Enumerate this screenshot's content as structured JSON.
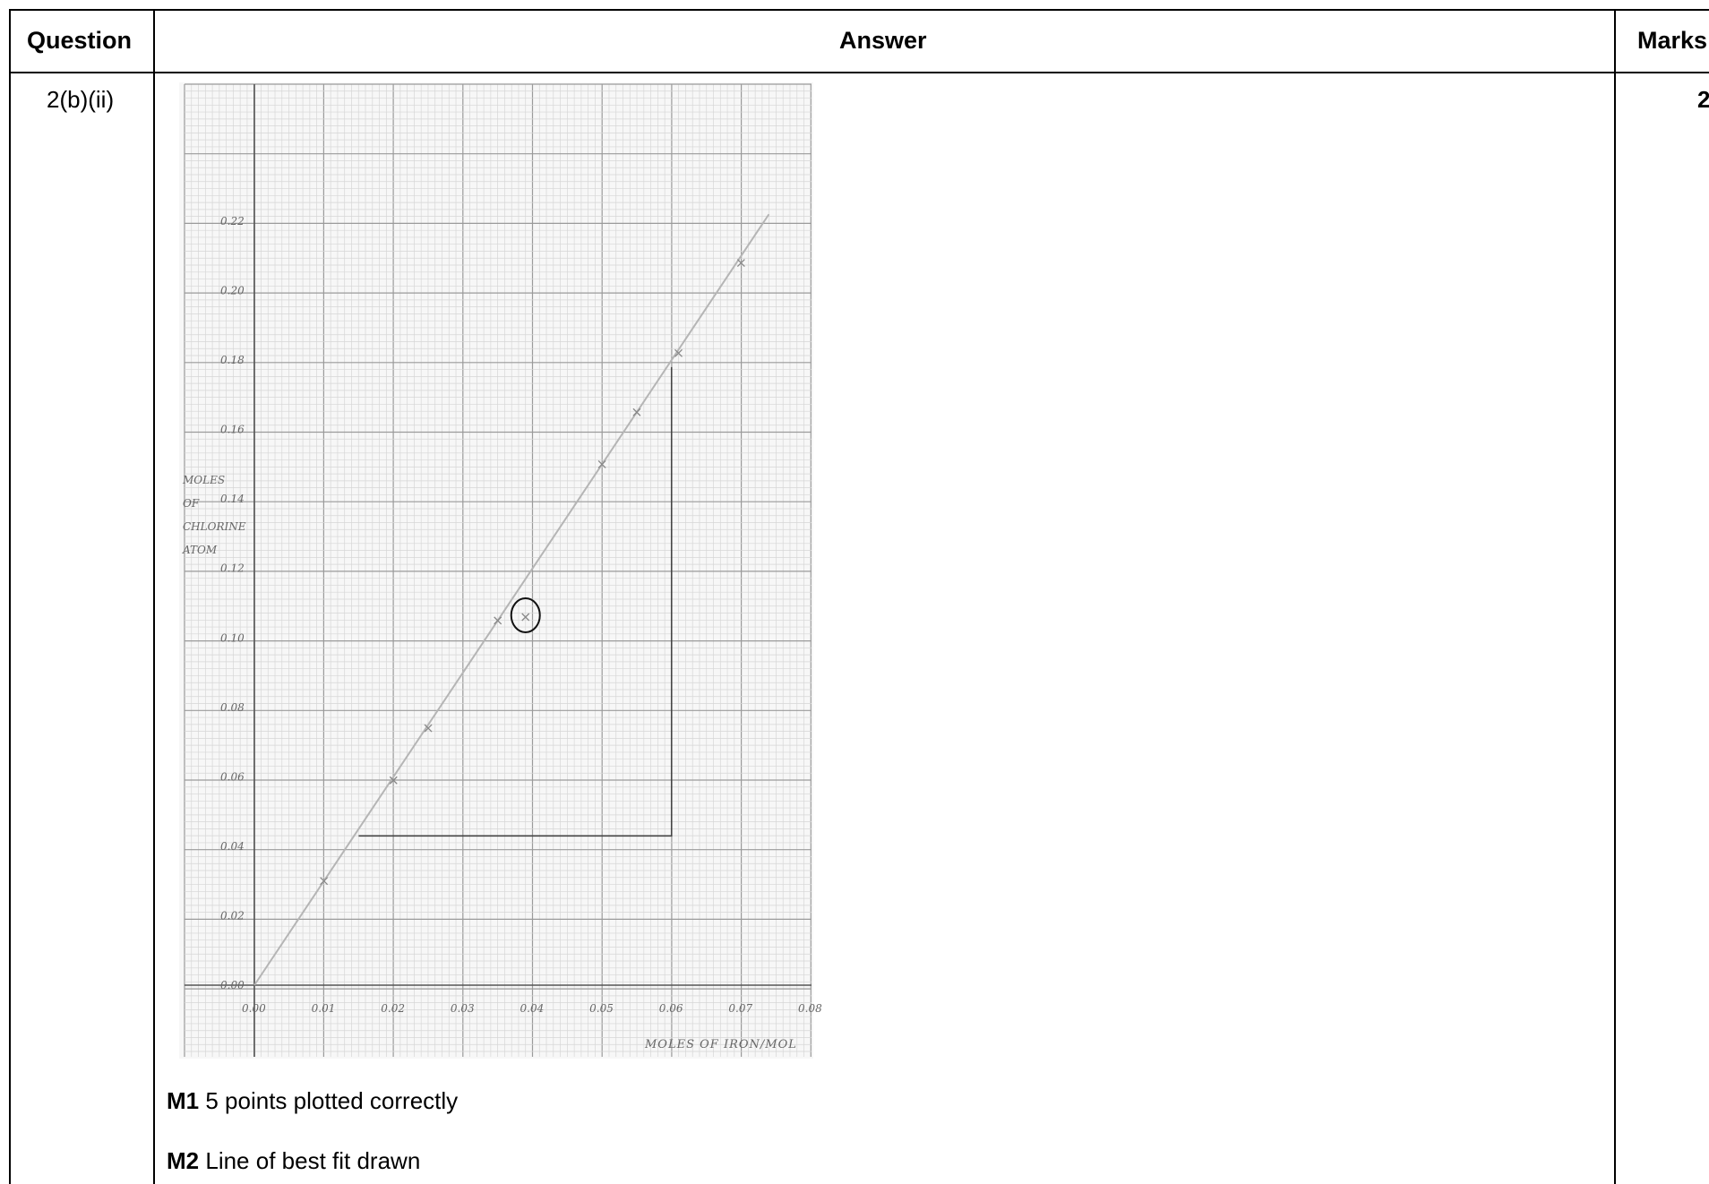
{
  "table": {
    "headers": {
      "question": "Question",
      "answer": "Answer",
      "marks": "Marks"
    },
    "row": {
      "question": "2(b)(ii)",
      "marks": "2",
      "mark_points": [
        {
          "code": "M1",
          "text": "5 points plotted correctly"
        },
        {
          "code": "M2",
          "text": "Line of best fit drawn"
        }
      ]
    }
  },
  "chart_data": {
    "type": "scatter",
    "title": "",
    "xlabel": "MOLES OF IRON/MOL",
    "ylabel": "MOLES OF CHLORINE ATOM",
    "xlim": [
      0.0,
      0.08
    ],
    "ylim": [
      0.0,
      0.22
    ],
    "x_ticks": [
      "0.00",
      "0.01",
      "0.02",
      "0.03",
      "0.04",
      "0.05",
      "0.06",
      "0.07",
      "0.08"
    ],
    "y_ticks": [
      "0.00",
      "0.02",
      "0.04",
      "0.06",
      "0.08",
      "0.10",
      "0.12",
      "0.14",
      "0.16",
      "0.18",
      "0.20",
      "0.22"
    ],
    "points": [
      {
        "x": 0.01,
        "y": 0.03
      },
      {
        "x": 0.02,
        "y": 0.059
      },
      {
        "x": 0.025,
        "y": 0.074
      },
      {
        "x": 0.035,
        "y": 0.105
      },
      {
        "x": 0.039,
        "y": 0.106,
        "circled": true
      },
      {
        "x": 0.05,
        "y": 0.15
      },
      {
        "x": 0.055,
        "y": 0.165
      },
      {
        "x": 0.061,
        "y": 0.182
      },
      {
        "x": 0.07,
        "y": 0.208
      }
    ],
    "best_fit_line": {
      "x": [
        0.0,
        0.074
      ],
      "y": [
        0.0,
        0.222
      ]
    },
    "gradient_triangle": {
      "x": [
        0.015,
        0.06
      ],
      "y": [
        0.043,
        0.178
      ]
    },
    "grid": true
  }
}
